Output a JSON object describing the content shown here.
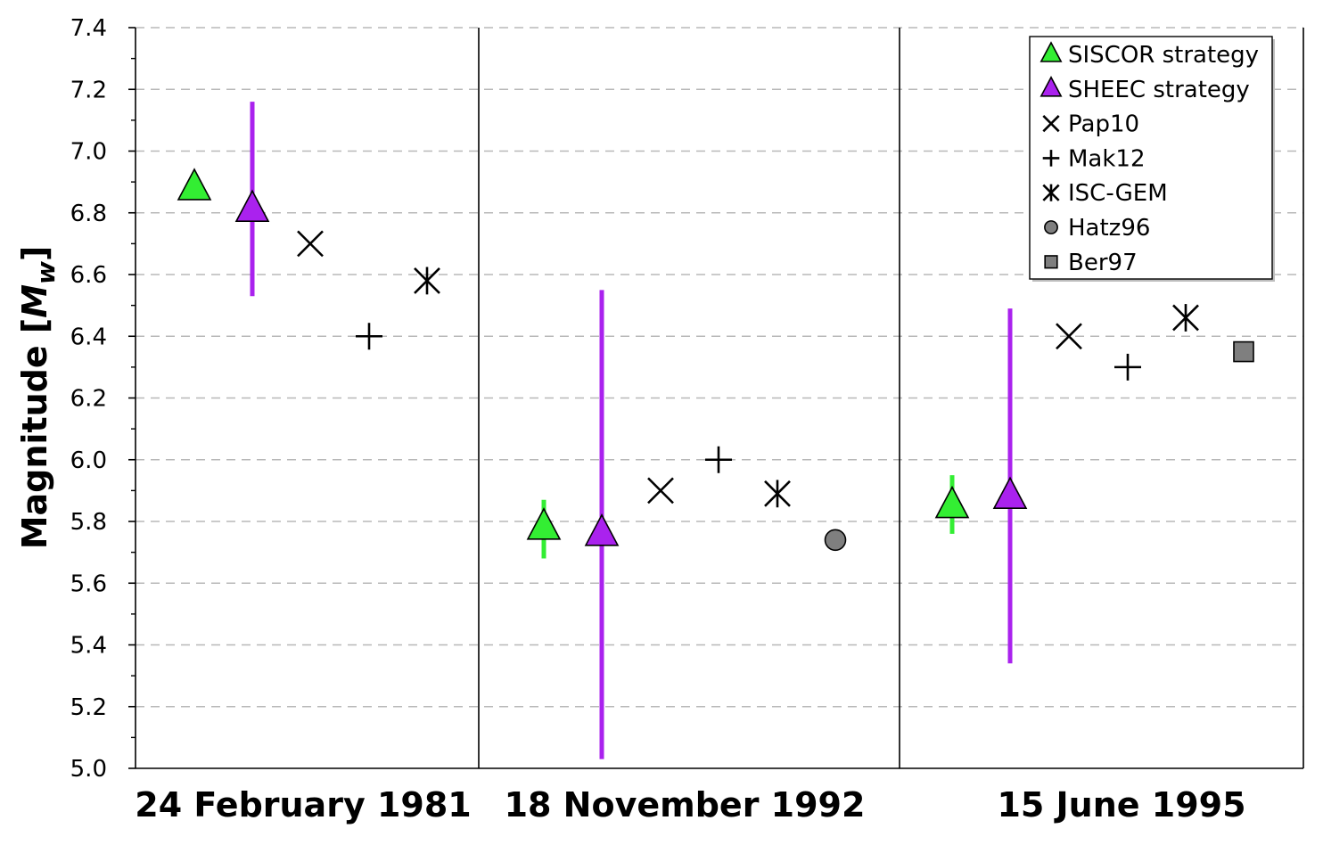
{
  "chart_data": {
    "type": "scatter",
    "ylabel_main": "Magnitude [",
    "ylabel_sym": "M",
    "ylabel_sub": "w",
    "ylabel_close": "]",
    "ylim": [
      5.0,
      7.4
    ],
    "ytick_step": 0.2,
    "yticks": [
      "5.0",
      "5.2",
      "5.4",
      "5.6",
      "5.8",
      "6.0",
      "6.2",
      "6.4",
      "6.6",
      "6.8",
      "7.0",
      "7.2",
      "7.4"
    ],
    "grid": "horizontal dashed",
    "legend_position": "top-right",
    "categories": [
      "24 February 1981",
      "18 November 1992",
      "15 June 1995"
    ],
    "series": [
      {
        "name": "SISCOR strategy",
        "marker": "triangle",
        "color": "#33ee33",
        "points": [
          {
            "event": "24 February 1981",
            "value": 6.88,
            "err_low": null,
            "err_high": null
          },
          {
            "event": "18 November 1992",
            "value": 5.78,
            "err_low": 5.68,
            "err_high": 5.87
          },
          {
            "event": "15 June 1995",
            "value": 5.85,
            "err_low": 5.76,
            "err_high": 5.95
          }
        ]
      },
      {
        "name": "SHEEC strategy",
        "marker": "triangle",
        "color": "#aa22ee",
        "points": [
          {
            "event": "24 February 1981",
            "value": 6.81,
            "err_low": 6.53,
            "err_high": 7.16
          },
          {
            "event": "18 November 1992",
            "value": 5.76,
            "err_low": 5.03,
            "err_high": 6.55
          },
          {
            "event": "15 June 1995",
            "value": 5.88,
            "err_low": 5.34,
            "err_high": 6.49
          }
        ]
      },
      {
        "name": "Pap10",
        "marker": "x",
        "color": "#000000",
        "points": [
          {
            "event": "24 February 1981",
            "value": 6.7
          },
          {
            "event": "18 November 1992",
            "value": 5.9
          },
          {
            "event": "15 June 1995",
            "value": 6.4
          }
        ]
      },
      {
        "name": "Mak12",
        "marker": "plus",
        "color": "#000000",
        "points": [
          {
            "event": "24 February 1981",
            "value": 6.4
          },
          {
            "event": "18 November 1992",
            "value": 6.0
          },
          {
            "event": "15 June 1995",
            "value": 6.3
          }
        ]
      },
      {
        "name": "ISC-GEM",
        "marker": "star",
        "color": "#000000",
        "points": [
          {
            "event": "24 February 1981",
            "value": 6.58
          },
          {
            "event": "18 November 1992",
            "value": 5.89
          },
          {
            "event": "15 June 1995",
            "value": 6.46
          }
        ]
      },
      {
        "name": "Hatz96",
        "marker": "circle",
        "color": "#7f7f7f",
        "points": [
          {
            "event": "18 November 1992",
            "value": 5.74
          }
        ]
      },
      {
        "name": "Ber97",
        "marker": "square",
        "color": "#7f7f7f",
        "points": [
          {
            "event": "15 June 1995",
            "value": 6.35
          }
        ]
      }
    ]
  }
}
